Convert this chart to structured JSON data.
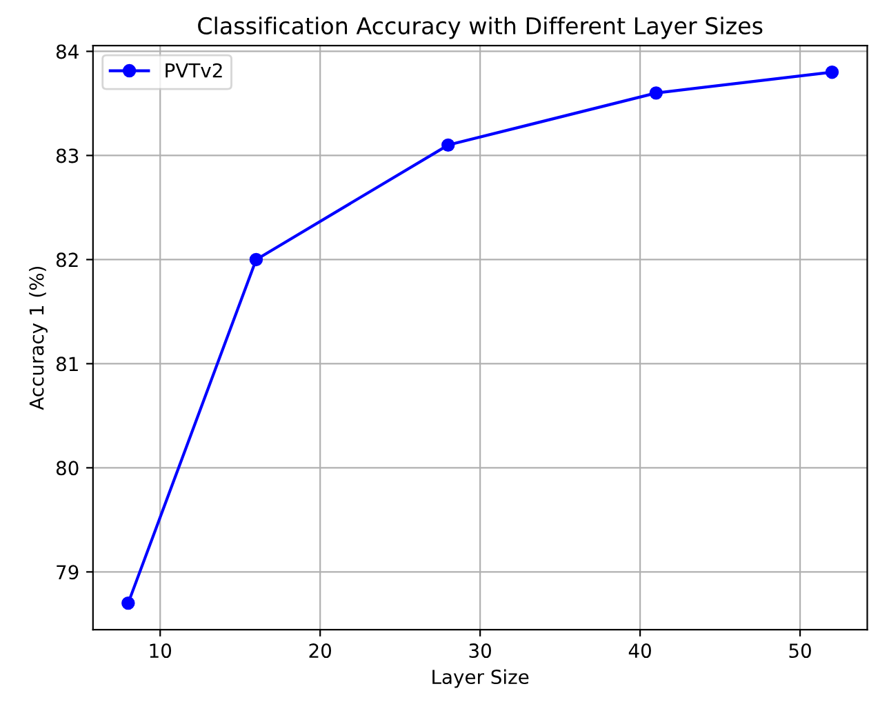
{
  "chart_data": {
    "type": "line",
    "title": "Classification Accuracy with Different Layer Sizes",
    "xlabel": "Layer Size",
    "ylabel": "Accuracy 1 (%)",
    "x": [
      8,
      16,
      28,
      41,
      52
    ],
    "series": [
      {
        "name": "PVTv2",
        "color": "#0000ff",
        "values": [
          78.7,
          82.0,
          83.1,
          83.6,
          83.8
        ]
      }
    ],
    "xlim": [
      5.8,
      54.2
    ],
    "ylim": [
      78.445,
      84.055
    ],
    "xticks": [
      10,
      20,
      30,
      40,
      50
    ],
    "yticks": [
      79,
      80,
      81,
      82,
      83,
      84
    ],
    "grid": true,
    "legend": "top left",
    "marker": "circle",
    "line_style": "solid"
  }
}
